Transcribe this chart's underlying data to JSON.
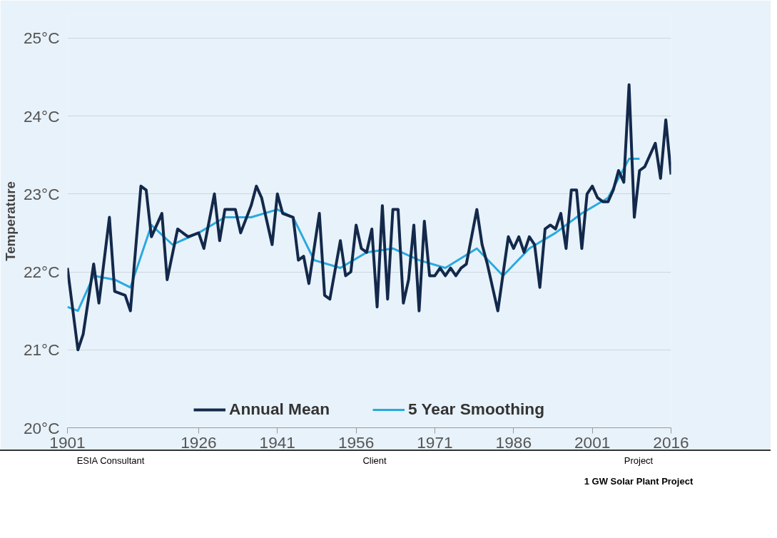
{
  "chart_data": {
    "type": "line",
    "ylabel": "Temperature",
    "xlim": [
      1901,
      2016
    ],
    "xticks": [
      1901,
      1926,
      1941,
      1956,
      1971,
      1986,
      2001,
      2016
    ],
    "ylim": [
      20,
      25.3
    ],
    "yticks": [
      {
        "value": 20,
        "label": "20°C"
      },
      {
        "value": 21,
        "label": "21°C"
      },
      {
        "value": 22,
        "label": "22°C"
      },
      {
        "value": 23,
        "label": "23°C"
      },
      {
        "value": 24,
        "label": "24°C"
      },
      {
        "value": 25,
        "label": "25°C"
      }
    ],
    "grid": "y",
    "legend": "bottom",
    "line_style": "solid",
    "series": [
      {
        "name": "Annual Mean",
        "color": "#13294b",
        "x": [
          1901,
          1903,
          1904,
          1906,
          1907,
          1909,
          1910,
          1912,
          1913,
          1915,
          1916,
          1917,
          1919,
          1920,
          1922,
          1924,
          1926,
          1927,
          1929,
          1930,
          1931,
          1933,
          1934,
          1936,
          1937,
          1938,
          1940,
          1941,
          1942,
          1944,
          1945,
          1946,
          1947,
          1949,
          1950,
          1951,
          1953,
          1954,
          1955,
          1956,
          1957,
          1958,
          1959,
          1960,
          1961,
          1962,
          1963,
          1964,
          1965,
          1966,
          1967,
          1968,
          1969,
          1970,
          1971,
          1972,
          1973,
          1974,
          1975,
          1976,
          1977,
          1979,
          1980,
          1981,
          1983,
          1985,
          1986,
          1987,
          1988,
          1989,
          1990,
          1991,
          1992,
          1993,
          1994,
          1995,
          1996,
          1997,
          1998,
          1999,
          2000,
          2001,
          2002,
          2003,
          2004,
          2005,
          2006,
          2007,
          2008,
          2009,
          2010,
          2011,
          2012,
          2013,
          2014,
          2015,
          2016
        ],
        "values": [
          22.05,
          21.0,
          21.2,
          22.1,
          21.6,
          22.7,
          21.75,
          21.7,
          21.5,
          23.1,
          23.05,
          22.45,
          22.75,
          21.9,
          22.55,
          22.45,
          22.5,
          22.3,
          23.0,
          22.4,
          22.8,
          22.8,
          22.5,
          22.85,
          23.1,
          22.95,
          22.35,
          23.0,
          22.75,
          22.7,
          22.15,
          22.2,
          21.85,
          22.75,
          21.7,
          21.65,
          22.4,
          21.95,
          22.0,
          22.6,
          22.3,
          22.25,
          22.55,
          21.55,
          22.85,
          21.65,
          22.8,
          22.8,
          21.6,
          21.9,
          22.6,
          21.5,
          22.65,
          21.95,
          21.95,
          22.05,
          21.95,
          22.05,
          21.95,
          22.05,
          22.1,
          22.8,
          22.35,
          22.1,
          21.5,
          22.45,
          22.3,
          22.45,
          22.25,
          22.45,
          22.35,
          21.8,
          22.55,
          22.6,
          22.55,
          22.75,
          22.3,
          23.05,
          23.05,
          22.3,
          23.0,
          23.1,
          22.95,
          22.9,
          22.9,
          23.05,
          23.3,
          23.15,
          24.4,
          22.7,
          23.3,
          23.35,
          23.5,
          23.65,
          23.2,
          23.95,
          23.25
        ]
      },
      {
        "name": "5 Year Smoothing",
        "color": "#29a9e0",
        "x": [
          1901,
          1903,
          1906,
          1910,
          1913,
          1917,
          1921,
          1926,
          1931,
          1936,
          1941,
          1944,
          1948,
          1953,
          1958,
          1963,
          1968,
          1973,
          1979,
          1984,
          1989,
          1994,
          1999,
          2004,
          2008,
          2010
        ],
        "values": [
          21.55,
          21.5,
          21.95,
          21.9,
          21.8,
          22.6,
          22.35,
          22.5,
          22.7,
          22.7,
          22.8,
          22.7,
          22.15,
          22.05,
          22.25,
          22.3,
          22.15,
          22.05,
          22.3,
          21.95,
          22.3,
          22.5,
          22.75,
          22.95,
          23.45,
          23.45
        ]
      }
    ],
    "annotations": [
      "ESIA Consultant",
      "Client",
      "Project",
      "1 GW Solar Plant Project"
    ]
  }
}
